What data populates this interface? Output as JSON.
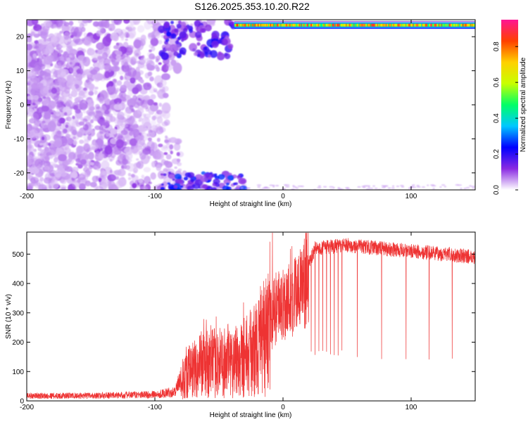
{
  "figure": {
    "title": "S126.2025.353.10.20.R22"
  },
  "chart_data": [
    {
      "type": "heatmap",
      "xlabel": "Height of straight line (km)",
      "ylabel": "Frequency (Hz)",
      "xlim": [
        -200,
        150
      ],
      "ylim": [
        -25,
        25
      ],
      "xticks": [
        -200,
        -100,
        0,
        100
      ],
      "xtick_labels": [
        "-200",
        "-100",
        "0",
        "100"
      ],
      "yticks": [
        -20,
        -10,
        0,
        10,
        20
      ],
      "ytick_labels": [
        "-20",
        "-10",
        "0",
        "10",
        "20"
      ],
      "colorbar": {
        "label": "Normalized spectral amplitude",
        "range": [
          0,
          0.95
        ],
        "ticks": [
          0,
          0.2,
          0.4,
          0.6,
          0.8
        ],
        "tick_labels": [
          "0.0",
          "0.2",
          "0.4",
          "0.6",
          "0.8"
        ],
        "colormap": [
          "#ffffff",
          "#8a2be2",
          "#0000ff",
          "#00c8ff",
          "#00ff66",
          "#c8ff00",
          "#ffd000",
          "#ff4000",
          "#ff1493"
        ]
      },
      "features": [
        {
          "description_region": "scattered noise blobs",
          "x_range": [
            -200,
            -80
          ],
          "y_range": [
            -25,
            25
          ],
          "amplitude": 0.1
        },
        {
          "description_region": "strong band near Nyquist",
          "x_range": [
            -30,
            150
          ],
          "y_range": [
            22.5,
            24
          ],
          "amplitude": 0.9
        },
        {
          "description_region": "band near negative Nyquist",
          "x_range": [
            -70,
            -30
          ],
          "y_range": [
            -25,
            -23
          ],
          "amplitude": 0.3
        }
      ]
    },
    {
      "type": "line",
      "xlabel": "Height of straight line (km)",
      "ylabel": "SNR (10 * v/v)",
      "xlim": [
        -200,
        150
      ],
      "ylim": [
        0,
        575
      ],
      "xticks": [
        -200,
        -100,
        0,
        100
      ],
      "xtick_labels": [
        "-200",
        "-100",
        "0",
        "100"
      ],
      "yticks": [
        0,
        100,
        200,
        300,
        400,
        500
      ],
      "ytick_labels": [
        "0",
        "100",
        "200",
        "300",
        "400",
        "500"
      ],
      "line_color": "#ee3333",
      "envelope": [
        {
          "x": -200,
          "y": 20
        },
        {
          "x": -150,
          "y": 20
        },
        {
          "x": -100,
          "y": 25
        },
        {
          "x": -85,
          "y": 35
        },
        {
          "x": -75,
          "y": 120
        },
        {
          "x": -65,
          "y": 150
        },
        {
          "x": -50,
          "y": 160
        },
        {
          "x": -40,
          "y": 170
        },
        {
          "x": -25,
          "y": 200
        },
        {
          "x": -15,
          "y": 250
        },
        {
          "x": -5,
          "y": 350
        },
        {
          "x": 5,
          "y": 380
        },
        {
          "x": 15,
          "y": 420
        },
        {
          "x": 25,
          "y": 520
        },
        {
          "x": 50,
          "y": 530
        },
        {
          "x": 100,
          "y": 510
        },
        {
          "x": 150,
          "y": 490
        }
      ],
      "dropouts_x": [
        22,
        25,
        28,
        31,
        34,
        37,
        40,
        43,
        46,
        58,
        77,
        96,
        114,
        132
      ]
    }
  ]
}
